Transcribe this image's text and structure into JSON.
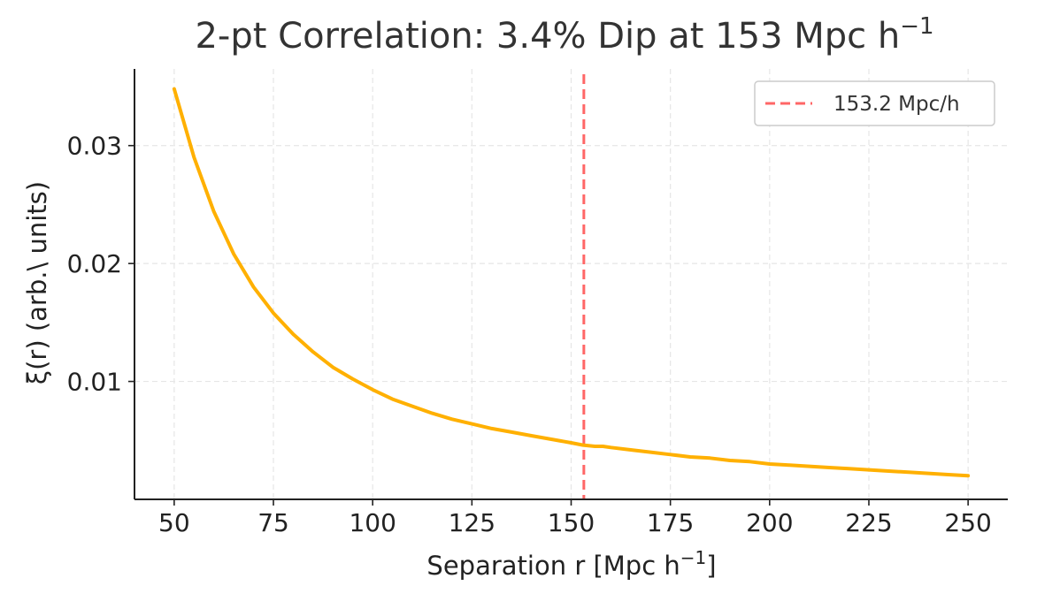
{
  "chart_data": {
    "type": "line",
    "title": "2-pt Correlation: 3.4% Dip at 153 Mpc h",
    "title_superscript": "−1",
    "xlabel": "Separation r  [Mpc h",
    "xlabel_superscript": "−1",
    "xlabel_close": "]",
    "ylabel": "ξ(r)  (arb.\\ units)",
    "xlim": [
      40,
      260
    ],
    "ylim": [
      0.0,
      0.0365
    ],
    "x_ticks": [
      50,
      75,
      100,
      125,
      150,
      175,
      200,
      225,
      250
    ],
    "x_tick_labels": [
      "50",
      "75",
      "100",
      "125",
      "150",
      "175",
      "200",
      "225",
      "250"
    ],
    "y_ticks": [
      0.01,
      0.02,
      0.03
    ],
    "y_tick_labels": [
      "0.01",
      "0.02",
      "0.03"
    ],
    "grid": true,
    "legend_position": "top-right",
    "series": [
      {
        "color": "#FFB000",
        "x": [
          50,
          55,
          60,
          65,
          70,
          75,
          80,
          85,
          90,
          95,
          100,
          105,
          110,
          115,
          120,
          125,
          130,
          135,
          140,
          145,
          150,
          153,
          156,
          158,
          160,
          165,
          170,
          175,
          180,
          185,
          190,
          195,
          200,
          205,
          210,
          215,
          220,
          225,
          230,
          235,
          240,
          245,
          250
        ],
        "y": [
          0.0348,
          0.029,
          0.0244,
          0.0208,
          0.018,
          0.0158,
          0.014,
          0.0125,
          0.0112,
          0.0102,
          0.0093,
          0.0085,
          0.0079,
          0.0073,
          0.0068,
          0.0064,
          0.006,
          0.0057,
          0.0054,
          0.0051,
          0.0048,
          0.0046,
          0.0045,
          0.0045,
          0.0044,
          0.0042,
          0.004,
          0.0038,
          0.0036,
          0.0035,
          0.0033,
          0.0032,
          0.003,
          0.0029,
          0.0028,
          0.0027,
          0.0026,
          0.0025,
          0.0024,
          0.0023,
          0.0022,
          0.0021,
          0.002
        ]
      }
    ],
    "vline": {
      "x": 153.2,
      "label": "153.2 Mpc/h",
      "color": "#FF6666",
      "style": "dashed"
    }
  }
}
